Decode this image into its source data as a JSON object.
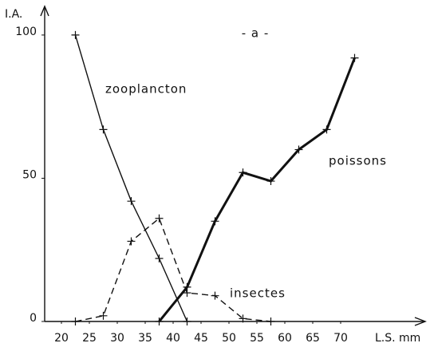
{
  "chart_data": {
    "type": "line",
    "title": "- a -",
    "ylabel": "I.A.",
    "xlabel": "L.S. mm",
    "xlim": [
      17,
      85
    ],
    "xticks": [
      20,
      25,
      30,
      35,
      40,
      45,
      50,
      55,
      60,
      65,
      70
    ],
    "ylim": [
      0,
      110
    ],
    "yticks": [
      0,
      50,
      100
    ],
    "series": [
      {
        "name": "zooplancton",
        "color": "#111111",
        "style": "solid",
        "width": 1.4,
        "x": [
          22.5,
          27.5,
          32.5,
          37.5,
          42.5
        ],
        "values": [
          100,
          67,
          42,
          22,
          0
        ]
      },
      {
        "name": "insectes",
        "color": "#111111",
        "style": "dashed",
        "width": 1.4,
        "x": [
          22.5,
          27.5,
          32.5,
          37.5,
          42.5,
          47.5,
          52.5,
          57.5
        ],
        "values": [
          0,
          2,
          28,
          36,
          10,
          9,
          1,
          0
        ]
      },
      {
        "name": "poissons",
        "color": "#111111",
        "style": "solid",
        "width": 3,
        "x": [
          37.5,
          42.5,
          47.5,
          52.5,
          57.5,
          62.5,
          67.5,
          72.5
        ],
        "values": [
          0,
          12,
          35,
          52,
          49,
          60,
          67,
          92
        ]
      }
    ]
  }
}
